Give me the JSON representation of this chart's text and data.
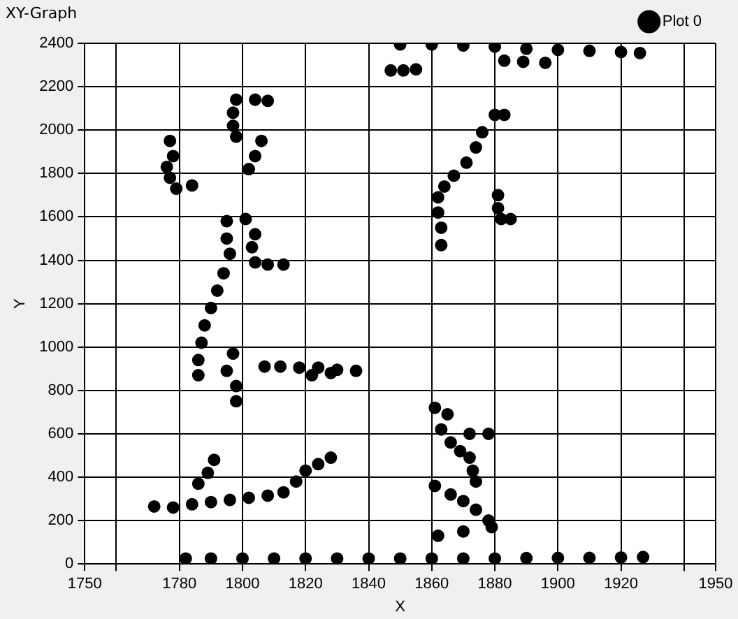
{
  "chart_data": {
    "type": "scatter",
    "title": "XY-Graph",
    "xlabel": "X",
    "ylabel": "Y",
    "xlim": [
      1750,
      1950
    ],
    "xticks": [
      1750,
      {
        "value": 1760,
        "label": null
      },
      1780,
      1800,
      1820,
      1840,
      1860,
      1880,
      1900,
      1920,
      {
        "value": 1940,
        "label": null
      },
      1950
    ],
    "ylim": [
      0,
      2400
    ],
    "yticks": [
      0,
      200,
      400,
      600,
      800,
      1000,
      1200,
      1400,
      1600,
      1800,
      2000,
      2200,
      2400
    ],
    "grid": true,
    "legend": "top right",
    "marker": "circle",
    "series": [
      {
        "name": "Plot 0",
        "color": "#000000",
        "x": [
          1782,
          1790,
          1800,
          1810,
          1820,
          1830,
          1840,
          1850,
          1860,
          1870,
          1880,
          1890,
          1900,
          1910,
          1920,
          1927,
          1850,
          1860,
          1870,
          1880,
          1890,
          1900,
          1910,
          1920,
          1926,
          1847,
          1851,
          1855,
          1883,
          1889,
          1896,
          1798,
          1804,
          1808,
          1797,
          1797,
          1798,
          1806,
          1804,
          1802,
          1777,
          1778,
          1776,
          1777,
          1779,
          1784,
          1795,
          1795,
          1796,
          1801,
          1804,
          1803,
          1804,
          1808,
          1813,
          1794,
          1792,
          1790,
          1788,
          1787,
          1786,
          1786,
          1797,
          1795,
          1798,
          1798,
          1807,
          1812,
          1818,
          1824,
          1830,
          1836,
          1822,
          1828,
          1772,
          1778,
          1784,
          1790,
          1796,
          1802,
          1808,
          1813,
          1786,
          1789,
          1791,
          1817,
          1820,
          1824,
          1828,
          1861,
          1865,
          1863,
          1866,
          1869,
          1872,
          1878,
          1872,
          1873,
          1874,
          1861,
          1866,
          1870,
          1874,
          1878,
          1879,
          1870,
          1862,
          1880,
          1876,
          1874,
          1871,
          1867,
          1864,
          1862,
          1862,
          1863,
          1863,
          1883,
          1881,
          1881,
          1882,
          1885
        ],
        "values": [
          25,
          25,
          25,
          25,
          25,
          25,
          25,
          25,
          25,
          25,
          25,
          27,
          28,
          28,
          30,
          32,
          2395,
          2395,
          2390,
          2385,
          2375,
          2370,
          2365,
          2360,
          2355,
          2275,
          2275,
          2280,
          2320,
          2315,
          2310,
          2140,
          2140,
          2135,
          2080,
          2020,
          1970,
          1950,
          1880,
          1820,
          1950,
          1880,
          1830,
          1780,
          1730,
          1745,
          1580,
          1500,
          1430,
          1590,
          1520,
          1460,
          1390,
          1380,
          1380,
          1340,
          1260,
          1180,
          1100,
          1020,
          940,
          870,
          970,
          890,
          820,
          750,
          910,
          910,
          905,
          905,
          895,
          890,
          870,
          880,
          265,
          260,
          275,
          285,
          295,
          305,
          315,
          330,
          370,
          420,
          480,
          380,
          430,
          460,
          490,
          720,
          690,
          620,
          560,
          520,
          600,
          600,
          490,
          430,
          380,
          360,
          320,
          290,
          250,
          200,
          170,
          150,
          130,
          2070,
          1990,
          1920,
          1850,
          1790,
          1740,
          1690,
          1620,
          1550,
          1470,
          2070,
          1700,
          1640,
          1590,
          1590
        ]
      }
    ]
  }
}
